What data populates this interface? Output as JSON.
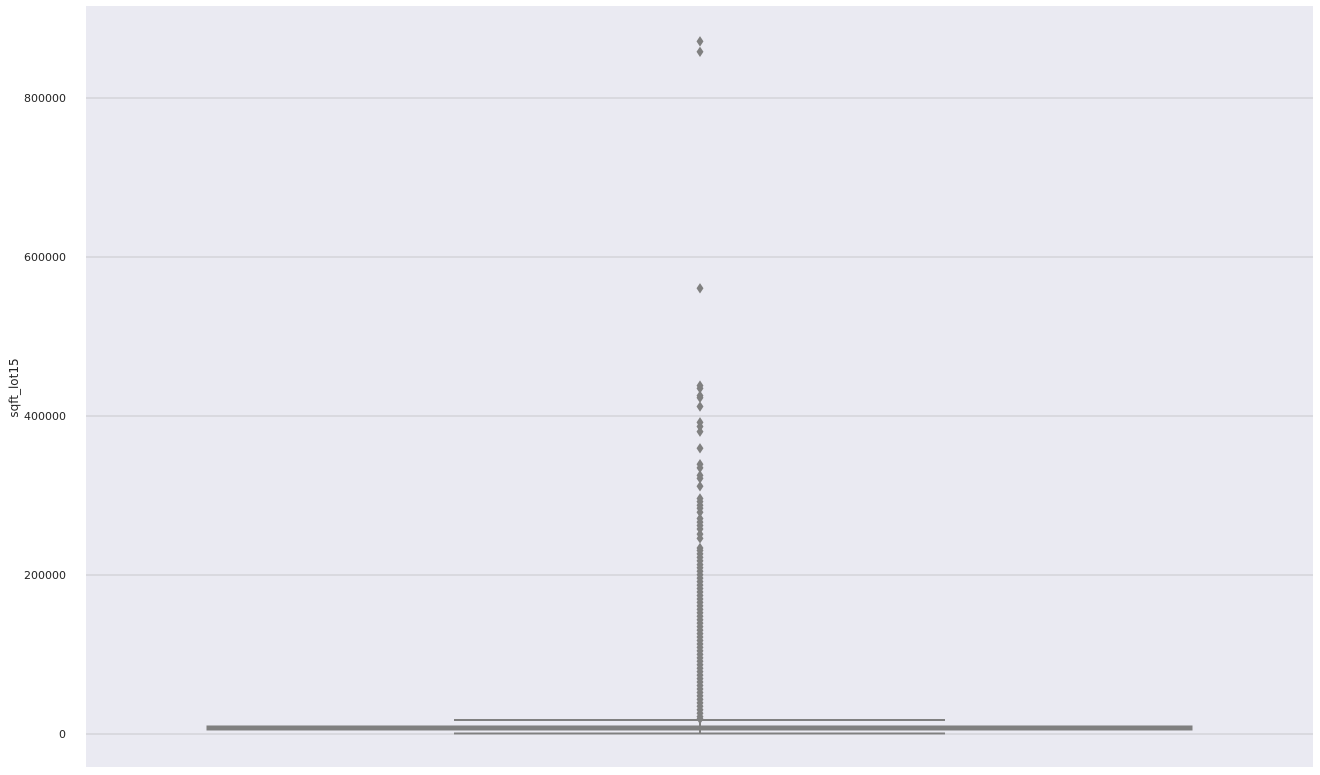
{
  "chart_data": {
    "type": "box",
    "title": "",
    "xlabel": "",
    "ylabel": "sqft_lot15",
    "ylim": [
      -40000,
      915000
    ],
    "yticks": [
      0,
      200000,
      400000,
      600000,
      800000
    ],
    "ytick_labels": [
      "0",
      "200000",
      "400000",
      "600000",
      "800000"
    ],
    "grid": "horizontal",
    "background_color": "#eaeaf2",
    "box_color": "#808080",
    "box": {
      "whisker_low": 651,
      "q1": 5100,
      "median": 7620,
      "q3": 10083,
      "whisker_high": 17550
    },
    "outliers": [
      871200,
      858132,
      560617,
      438213,
      434728,
      425581,
      422967,
      411962,
      392040,
      386812,
      380279,
      359370,
      339332,
      334719,
      325393,
      321473,
      311610,
      296208,
      292288,
      287738,
      284011,
      278914,
      271050,
      266587,
      262231,
      257875,
      251341,
      246114,
      234000,
      230868,
      226512,
      222156,
      217800,
      213008,
      209088,
      204732,
      200376,
      196020,
      191664,
      187308,
      182952,
      178596,
      174240,
      169884,
      165528,
      161172,
      156816,
      152460,
      148104,
      143748,
      139392,
      135036,
      130680,
      126324,
      121968,
      117612,
      113256,
      108900,
      104544,
      100188,
      95832,
      91476,
      87120,
      82764,
      78408,
      74052,
      69696,
      65340,
      60984,
      56628,
      52272,
      47916,
      43560,
      39204,
      34848,
      30492,
      26136,
      21780,
      18800
    ]
  }
}
